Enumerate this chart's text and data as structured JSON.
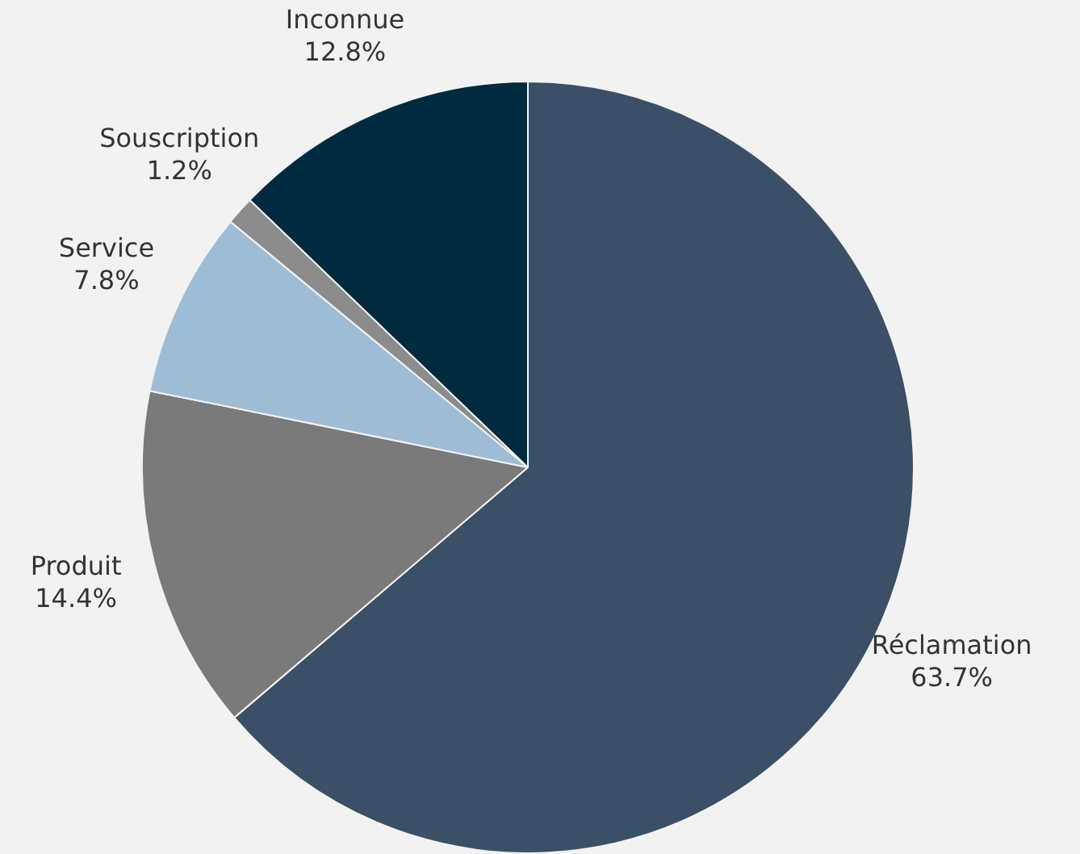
{
  "chart_data": {
    "type": "pie",
    "categories": [
      "Réclamation",
      "Produit",
      "Service",
      "Souscription",
      "Inconnue"
    ],
    "values": [
      63.7,
      14.4,
      7.8,
      1.2,
      12.8
    ],
    "colors": [
      "#3b5066",
      "#7a7a7a",
      "#9ebcd6",
      "#8c8c8c",
      "#002a3f"
    ],
    "value_labels": [
      "63.7%",
      "14.4%",
      "7.8%",
      "1.2%",
      "12.8%"
    ],
    "legend": false
  }
}
